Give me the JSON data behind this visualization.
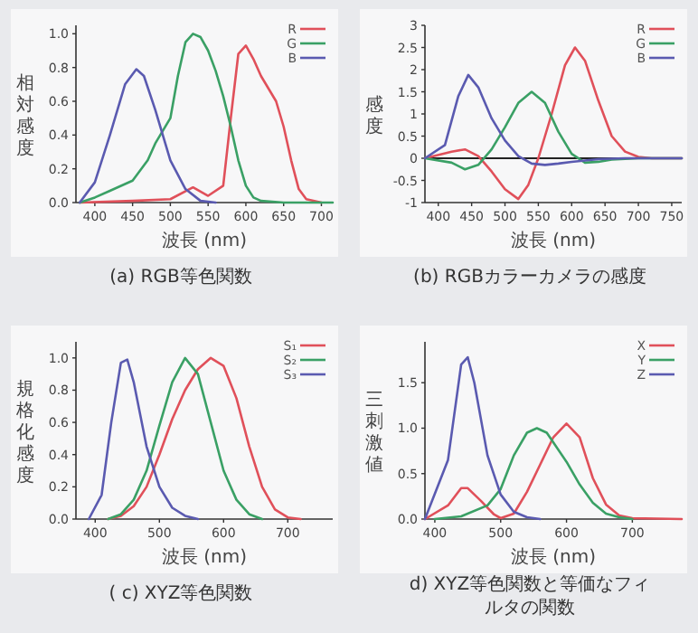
{
  "chart_data": [
    {
      "type": "line",
      "title": "(a) RGB等色関数",
      "xlabel": "波長 (nm)",
      "ylabel": "相対感度",
      "xlim": [
        375,
        715
      ],
      "ylim": [
        0,
        1.05
      ],
      "xticks": [
        400,
        450,
        500,
        550,
        600,
        650,
        700
      ],
      "yticks": [
        {
          "value": 0,
          "label": "0.0"
        },
        {
          "value": 0.2,
          "label": "0.2"
        },
        {
          "value": 0.4,
          "label": "0.4"
        },
        {
          "value": 0.6,
          "label": "0.6"
        },
        {
          "value": 0.8,
          "label": "0.8"
        },
        {
          "value": 1,
          "label": "1.0"
        }
      ],
      "legend": "top right",
      "series": [
        {
          "name": "R",
          "color": "#e0505a",
          "x": [
            380,
            450,
            500,
            530,
            550,
            570,
            580,
            590,
            600,
            610,
            620,
            640,
            650,
            660,
            670,
            680,
            700
          ],
          "values": [
            0,
            0.01,
            0.02,
            0.09,
            0.04,
            0.1,
            0.5,
            0.88,
            0.93,
            0.85,
            0.75,
            0.6,
            0.45,
            0.25,
            0.08,
            0.02,
            0
          ]
        },
        {
          "name": "G",
          "color": "#3aa065",
          "x": [
            380,
            400,
            420,
            450,
            470,
            480,
            500,
            510,
            520,
            530,
            540,
            550,
            560,
            570,
            580,
            590,
            600,
            610,
            620,
            650,
            715
          ],
          "values": [
            0,
            0.03,
            0.07,
            0.13,
            0.25,
            0.35,
            0.5,
            0.75,
            0.95,
            1.0,
            0.98,
            0.9,
            0.78,
            0.63,
            0.45,
            0.25,
            0.1,
            0.03,
            0.01,
            0,
            0
          ]
        },
        {
          "name": "B",
          "color": "#5a5ab0",
          "x": [
            380,
            400,
            420,
            440,
            455,
            465,
            480,
            500,
            520,
            540,
            560
          ],
          "values": [
            0,
            0.12,
            0.4,
            0.7,
            0.79,
            0.75,
            0.55,
            0.25,
            0.08,
            0.01,
            0
          ]
        }
      ]
    },
    {
      "type": "line",
      "title": "(b) RGBカラーカメラの感度",
      "xlabel": "波長 (nm)",
      "ylabel": "感度",
      "xlim": [
        380,
        765
      ],
      "ylim": [
        -1,
        3
      ],
      "xticks": [
        400,
        450,
        500,
        550,
        600,
        650,
        700,
        750
      ],
      "yticks": [
        -1,
        -0.5,
        0,
        0.5,
        1,
        1.5,
        2,
        2.5,
        3
      ],
      "legend": "top right",
      "ref_lines": [
        {
          "axis": "y",
          "value": 0,
          "color": "#222222"
        }
      ],
      "series": [
        {
          "name": "R",
          "color": "#e0505a",
          "x": [
            380,
            420,
            440,
            460,
            480,
            500,
            520,
            535,
            550,
            570,
            590,
            605,
            620,
            640,
            660,
            680,
            700,
            720,
            765
          ],
          "values": [
            0,
            0.15,
            0.2,
            0.05,
            -0.3,
            -0.7,
            -0.92,
            -0.6,
            0,
            1.0,
            2.1,
            2.5,
            2.2,
            1.3,
            0.5,
            0.15,
            0.03,
            0,
            0
          ]
        },
        {
          "name": "G",
          "color": "#3aa065",
          "x": [
            380,
            420,
            440,
            460,
            480,
            500,
            520,
            540,
            560,
            580,
            600,
            620,
            640,
            660,
            700,
            765
          ],
          "values": [
            0,
            -0.1,
            -0.25,
            -0.15,
            0.2,
            0.7,
            1.25,
            1.5,
            1.25,
            0.6,
            0.1,
            -0.1,
            -0.08,
            -0.03,
            0,
            0
          ]
        },
        {
          "name": "B",
          "color": "#5a5ab0",
          "x": [
            380,
            410,
            430,
            445,
            460,
            480,
            500,
            520,
            540,
            560,
            580,
            600,
            640,
            680,
            765
          ],
          "values": [
            0,
            0.3,
            1.4,
            1.88,
            1.6,
            0.9,
            0.4,
            0.05,
            -0.12,
            -0.15,
            -0.12,
            -0.08,
            -0.02,
            0,
            0
          ]
        }
      ]
    },
    {
      "type": "line",
      "title": "( c) XYZ等色関数",
      "xlabel": "波長 (nm)",
      "ylabel": "規格化感度",
      "xlim": [
        370,
        770
      ],
      "ylim": [
        0,
        1.1
      ],
      "xticks": [
        400,
        500,
        600,
        700
      ],
      "yticks": [
        {
          "value": 0,
          "label": "0.0"
        },
        {
          "value": 0.2,
          "label": "0.2"
        },
        {
          "value": 0.4,
          "label": "0.4"
        },
        {
          "value": 0.6,
          "label": "0.6"
        },
        {
          "value": 0.8,
          "label": "0.8"
        },
        {
          "value": 1,
          "label": "1.0"
        }
      ],
      "legend": "top right",
      "series": [
        {
          "name": "S₁",
          "color": "#e0505a",
          "x": [
            420,
            440,
            460,
            480,
            500,
            520,
            540,
            560,
            580,
            600,
            620,
            640,
            660,
            680,
            700,
            720
          ],
          "values": [
            0,
            0.02,
            0.08,
            0.2,
            0.4,
            0.62,
            0.8,
            0.93,
            1.0,
            0.95,
            0.75,
            0.45,
            0.2,
            0.06,
            0.01,
            0
          ]
        },
        {
          "name": "S₂",
          "color": "#3aa065",
          "x": [
            420,
            440,
            460,
            480,
            500,
            520,
            540,
            560,
            580,
            600,
            620,
            640,
            660
          ],
          "values": [
            0,
            0.03,
            0.12,
            0.3,
            0.58,
            0.85,
            1.0,
            0.9,
            0.6,
            0.3,
            0.12,
            0.03,
            0
          ]
        },
        {
          "name": "S₃",
          "color": "#5a5ab0",
          "x": [
            390,
            410,
            425,
            440,
            450,
            460,
            480,
            500,
            520,
            540,
            560
          ],
          "values": [
            0,
            0.15,
            0.6,
            0.97,
            0.99,
            0.85,
            0.45,
            0.2,
            0.07,
            0.02,
            0
          ]
        }
      ]
    },
    {
      "type": "line",
      "title": "d) XYZ等色関数と等価なフィルタの関数",
      "xlabel": "波長 (nm)",
      "ylabel": "三刺激値",
      "xlim": [
        385,
        775
      ],
      "ylim": [
        0,
        1.95
      ],
      "xticks": [
        400,
        500,
        600,
        700
      ],
      "yticks": [
        {
          "value": 0,
          "label": "0.0"
        },
        {
          "value": 0.5,
          "label": "0.5"
        },
        {
          "value": 1,
          "label": "1.0"
        },
        {
          "value": 1.5,
          "label": "1.5"
        }
      ],
      "legend": "top right",
      "series": [
        {
          "name": "X",
          "color": "#e0505a",
          "x": [
            385,
            420,
            440,
            450,
            470,
            490,
            500,
            520,
            540,
            560,
            580,
            600,
            620,
            640,
            660,
            680,
            700,
            775
          ],
          "values": [
            0,
            0.15,
            0.34,
            0.34,
            0.2,
            0.05,
            0.01,
            0.06,
            0.3,
            0.6,
            0.9,
            1.05,
            0.9,
            0.45,
            0.16,
            0.04,
            0.01,
            0
          ]
        },
        {
          "name": "Y",
          "color": "#3aa065",
          "x": [
            400,
            440,
            480,
            500,
            520,
            540,
            555,
            570,
            600,
            620,
            640,
            660,
            680,
            700
          ],
          "values": [
            0,
            0.03,
            0.15,
            0.33,
            0.7,
            0.95,
            1.0,
            0.95,
            0.63,
            0.38,
            0.18,
            0.06,
            0.02,
            0
          ]
        },
        {
          "name": "Z",
          "color": "#5a5ab0",
          "x": [
            385,
            420,
            440,
            450,
            460,
            480,
            500,
            520,
            540,
            560
          ],
          "values": [
            0,
            0.65,
            1.7,
            1.78,
            1.5,
            0.7,
            0.27,
            0.08,
            0.02,
            0
          ]
        }
      ]
    }
  ]
}
